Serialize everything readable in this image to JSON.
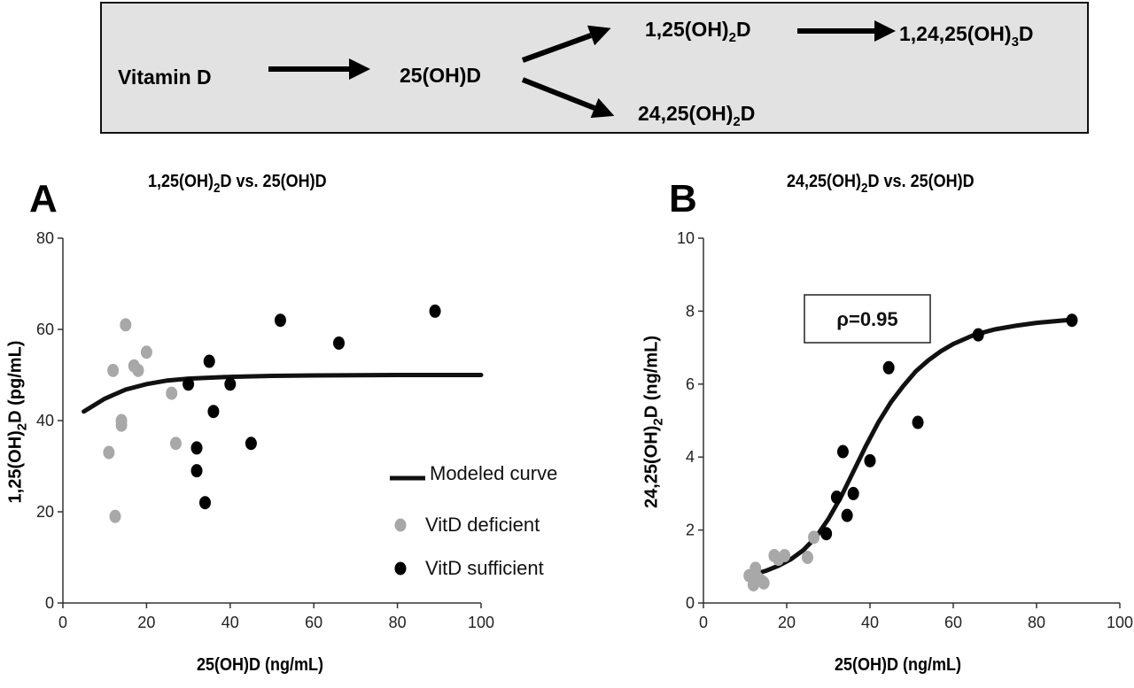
{
  "pathway": {
    "vitamin_d": "Vitamin D",
    "d25": "25(OH)D",
    "d125_pre": "1,25(OH)",
    "d125_sub": "2",
    "d125_post": "D",
    "d124_pre": "1,24,25(OH)",
    "d124_sub": "3",
    "d124_post": "D",
    "d2425_pre": "24,25(OH)",
    "d2425_sub": "2",
    "d2425_post": "D"
  },
  "colors": {
    "deficient": "#a8a8a8",
    "sufficient": "#000000",
    "curve": "#111111"
  },
  "chart_data": [
    {
      "type": "scatter",
      "panel": "A",
      "title_pre": "1,25(OH)",
      "title_sub": "2",
      "title_post": "D vs. 25(OH)D",
      "xlabel": "25(OH)D (ng/mL)",
      "ylabel_pre": "1,25(OH)",
      "ylabel_sub": "2",
      "ylabel_post": "D (pg/mL)",
      "xlim": [
        0,
        100
      ],
      "ylim": [
        0,
        80
      ],
      "xticks": [
        0,
        20,
        40,
        60,
        80,
        100
      ],
      "yticks": [
        0,
        20,
        40,
        60,
        80
      ],
      "legend": {
        "curve": "Modeled curve",
        "deficient": "VitD deficient",
        "sufficient": "VitD sufficient"
      },
      "series": [
        {
          "name": "VitD deficient",
          "points": [
            [
              11,
              33
            ],
            [
              12,
              51
            ],
            [
              12.5,
              19
            ],
            [
              14,
              39
            ],
            [
              14,
              40
            ],
            [
              15,
              61
            ],
            [
              17,
              52
            ],
            [
              18,
              51
            ],
            [
              20,
              55
            ],
            [
              26,
              46
            ],
            [
              27,
              35
            ]
          ]
        },
        {
          "name": "VitD sufficient",
          "points": [
            [
              30,
              48
            ],
            [
              32,
              34
            ],
            [
              32,
              29
            ],
            [
              34,
              22
            ],
            [
              35,
              53
            ],
            [
              36,
              42
            ],
            [
              40,
              48
            ],
            [
              45,
              35
            ],
            [
              52,
              62
            ],
            [
              66,
              57
            ],
            [
              89,
              64
            ]
          ]
        }
      ],
      "curve": [
        [
          5,
          42
        ],
        [
          10,
          44.8
        ],
        [
          15,
          46.8
        ],
        [
          20,
          48
        ],
        [
          25,
          48.8
        ],
        [
          30,
          49.2
        ],
        [
          40,
          49.6
        ],
        [
          50,
          49.8
        ],
        [
          60,
          49.9
        ],
        [
          80,
          50
        ],
        [
          100,
          50
        ]
      ]
    },
    {
      "type": "scatter",
      "panel": "B",
      "title_pre": "24,25(OH)",
      "title_sub": "2",
      "title_post": "D vs. 25(OH)D",
      "xlabel": "25(OH)D (ng/mL)",
      "ylabel_pre": "24,25(OH)",
      "ylabel_sub": "2",
      "ylabel_post": "D (ng/mL)",
      "xlim": [
        0,
        100
      ],
      "ylim": [
        0,
        10
      ],
      "xticks": [
        0,
        20,
        40,
        60,
        80,
        100
      ],
      "yticks": [
        0,
        2,
        4,
        6,
        8,
        10
      ],
      "annotation": "ρ=0.95",
      "series": [
        {
          "name": "VitD deficient",
          "points": [
            [
              11,
              0.75
            ],
            [
              12,
              0.5
            ],
            [
              12.5,
              0.95
            ],
            [
              13,
              0.7
            ],
            [
              14,
              0.6
            ],
            [
              14.5,
              0.55
            ],
            [
              17,
              1.3
            ],
            [
              18,
              1.2
            ],
            [
              19.5,
              1.3
            ],
            [
              25,
              1.25
            ],
            [
              26.5,
              1.8
            ]
          ]
        },
        {
          "name": "VitD sufficient",
          "points": [
            [
              29.5,
              1.9
            ],
            [
              32,
              2.9
            ],
            [
              33.5,
              4.15
            ],
            [
              34.5,
              2.4
            ],
            [
              36,
              3.0
            ],
            [
              40,
              3.9
            ],
            [
              44.5,
              6.45
            ],
            [
              51.5,
              4.95
            ],
            [
              66,
              7.35
            ],
            [
              88.5,
              7.75
            ]
          ]
        }
      ],
      "curve": [
        [
          12,
          0.78
        ],
        [
          15,
          0.88
        ],
        [
          18,
          1.02
        ],
        [
          21,
          1.2
        ],
        [
          24,
          1.45
        ],
        [
          27,
          1.8
        ],
        [
          30,
          2.3
        ],
        [
          33,
          2.9
        ],
        [
          36,
          3.6
        ],
        [
          39,
          4.3
        ],
        [
          42,
          4.95
        ],
        [
          45,
          5.5
        ],
        [
          48,
          5.95
        ],
        [
          51,
          6.35
        ],
        [
          54,
          6.65
        ],
        [
          57,
          6.9
        ],
        [
          60,
          7.1
        ],
        [
          65,
          7.35
        ],
        [
          70,
          7.5
        ],
        [
          75,
          7.6
        ],
        [
          80,
          7.68
        ],
        [
          85,
          7.73
        ],
        [
          89,
          7.77
        ]
      ]
    }
  ]
}
